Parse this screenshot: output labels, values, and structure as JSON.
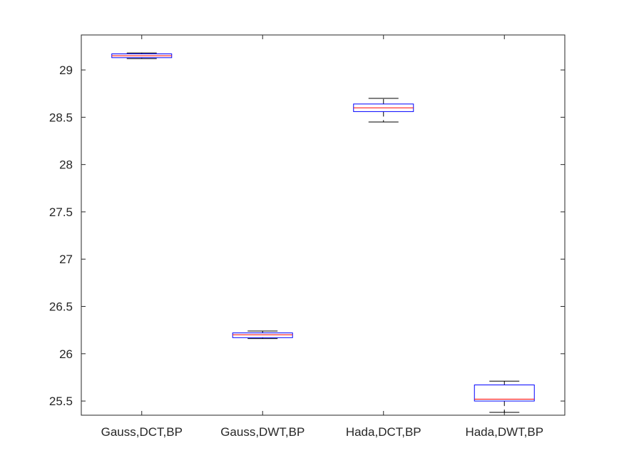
{
  "chart_data": {
    "type": "boxplot",
    "title": "",
    "xlabel": "",
    "ylabel": "",
    "ylim": [
      25.35,
      29.37
    ],
    "yticks": [
      25.5,
      26,
      26.5,
      27,
      27.5,
      28,
      28.5,
      29
    ],
    "ytick_labels": [
      "25.5",
      "26",
      "26.5",
      "27",
      "27.5",
      "28",
      "28.5",
      "29"
    ],
    "categories": [
      "Gauss,DCT,BP",
      "Gauss,DWT,BP",
      "Hada,DCT,BP",
      "Hada,DWT,BP"
    ],
    "boxes": [
      {
        "whisker_low": 29.12,
        "q1": 29.13,
        "median": 29.15,
        "q3": 29.17,
        "whisker_high": 29.18
      },
      {
        "whisker_low": 26.16,
        "q1": 26.17,
        "median": 26.2,
        "q3": 26.22,
        "whisker_high": 26.24
      },
      {
        "whisker_low": 28.45,
        "q1": 28.56,
        "median": 28.6,
        "q3": 28.64,
        "whisker_high": 28.7
      },
      {
        "whisker_low": 25.38,
        "q1": 25.5,
        "median": 25.52,
        "q3": 25.67,
        "whisker_high": 25.71
      }
    ],
    "colors": {
      "box": "#0000ff",
      "median": "#ff0000",
      "whisker": "#000000",
      "axes": "#262626"
    },
    "grid": false,
    "legend": "none"
  }
}
